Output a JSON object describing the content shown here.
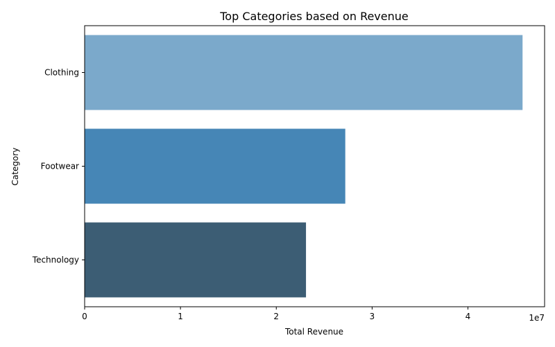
{
  "chart_data": {
    "type": "bar",
    "orientation": "horizontal",
    "title": "Top Categories based on Revenue",
    "xlabel": "Total Revenue",
    "ylabel": "Category",
    "categories": [
      "Clothing",
      "Footwear",
      "Technology"
    ],
    "values": [
      45700000,
      27200000,
      23100000
    ],
    "colors": [
      "#7ba9cb",
      "#4686b6",
      "#3c5d74"
    ],
    "x_ticks": [
      0,
      1,
      2,
      3,
      4
    ],
    "x_tick_labels": [
      "0",
      "1",
      "2",
      "3",
      "4"
    ],
    "x_scale_label": "1e7",
    "xlim": [
      0,
      48000000
    ],
    "grid": false
  }
}
